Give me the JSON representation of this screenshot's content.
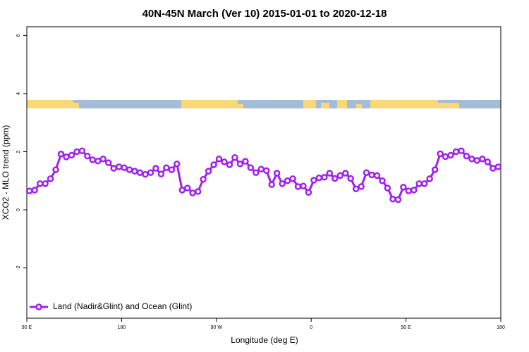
{
  "chart_data": {
    "type": "line",
    "title": "40N-45N March (Ver 10)   2015-01-01 to 2020-12-18",
    "x_label": "Longitude (deg E)",
    "y_label": "XCO2 - MLO trend (ppm)",
    "xlim": [
      90,
      540
    ],
    "ylim": [
      -3.73,
      6.3
    ],
    "xticks": [
      {
        "value": 90,
        "label": "90 E"
      },
      180,
      {
        "value": 270,
        "label": "90 W"
      },
      {
        "value": 360,
        "label": "0"
      },
      {
        "value": 450,
        "label": "90 E"
      },
      {
        "value": 540,
        "label": "180"
      }
    ],
    "yticks": [
      -2,
      0,
      2,
      4,
      6
    ],
    "legend": "bottom-left",
    "x": [
      92.5,
      97.5,
      102.5,
      107.5,
      112.5,
      117.5,
      122.5,
      127.5,
      132.5,
      137.5,
      142.5,
      147.5,
      152.5,
      157.5,
      162.5,
      167.5,
      172.5,
      177.5,
      182.5,
      187.5,
      192.5,
      197.5,
      202.5,
      207.5,
      212.5,
      217.5,
      222.5,
      227.5,
      232.5,
      237.5,
      242.5,
      247.5,
      252.5,
      257.5,
      262.5,
      267.5,
      272.5,
      277.5,
      282.5,
      287.5,
      292.5,
      297.5,
      302.5,
      307.5,
      312.5,
      317.5,
      322.5,
      327.5,
      332.5,
      337.5,
      342.5,
      347.5,
      352.5,
      357.5,
      362.5,
      367.5,
      372.5,
      377.5,
      382.5,
      387.5,
      392.5,
      397.5,
      402.5,
      407.5,
      412.5,
      417.5,
      422.5,
      427.5,
      432.5,
      437.5,
      442.5,
      447.5,
      452.5,
      457.5,
      462.5,
      467.5,
      472.5,
      477.5,
      482.5,
      487.5,
      492.5,
      497.5,
      502.5,
      507.5,
      512.5,
      517.5,
      522.5,
      527.5,
      532.5,
      537.5
    ],
    "series": [
      {
        "name": "Land (Nadir&Glint) and Ocean (Glint)",
        "color": "#a020f0",
        "values": [
          0.65,
          0.68,
          0.9,
          0.9,
          1.07,
          1.38,
          1.92,
          1.82,
          1.88,
          2.0,
          2.03,
          1.85,
          1.72,
          1.68,
          1.75,
          1.62,
          1.43,
          1.48,
          1.45,
          1.38,
          1.33,
          1.28,
          1.22,
          1.28,
          1.43,
          1.23,
          1.45,
          1.38,
          1.58,
          0.68,
          0.75,
          0.58,
          0.63,
          1.05,
          1.33,
          1.55,
          1.75,
          1.65,
          1.55,
          1.8,
          1.58,
          1.67,
          1.45,
          1.28,
          1.4,
          1.35,
          0.87,
          1.26,
          0.9,
          1.0,
          1.07,
          0.8,
          0.82,
          0.6,
          1.02,
          1.1,
          1.12,
          1.26,
          1.08,
          1.18,
          1.26,
          1.08,
          0.72,
          0.8,
          1.28,
          1.2,
          1.18,
          1.0,
          0.75,
          0.37,
          0.35,
          0.78,
          0.65,
          0.68,
          0.9,
          0.9,
          1.07,
          1.38,
          1.93,
          1.83,
          1.88,
          2.0,
          2.03,
          1.85,
          1.75,
          1.7,
          1.75,
          1.65,
          1.43,
          1.48
        ]
      }
    ]
  }
}
